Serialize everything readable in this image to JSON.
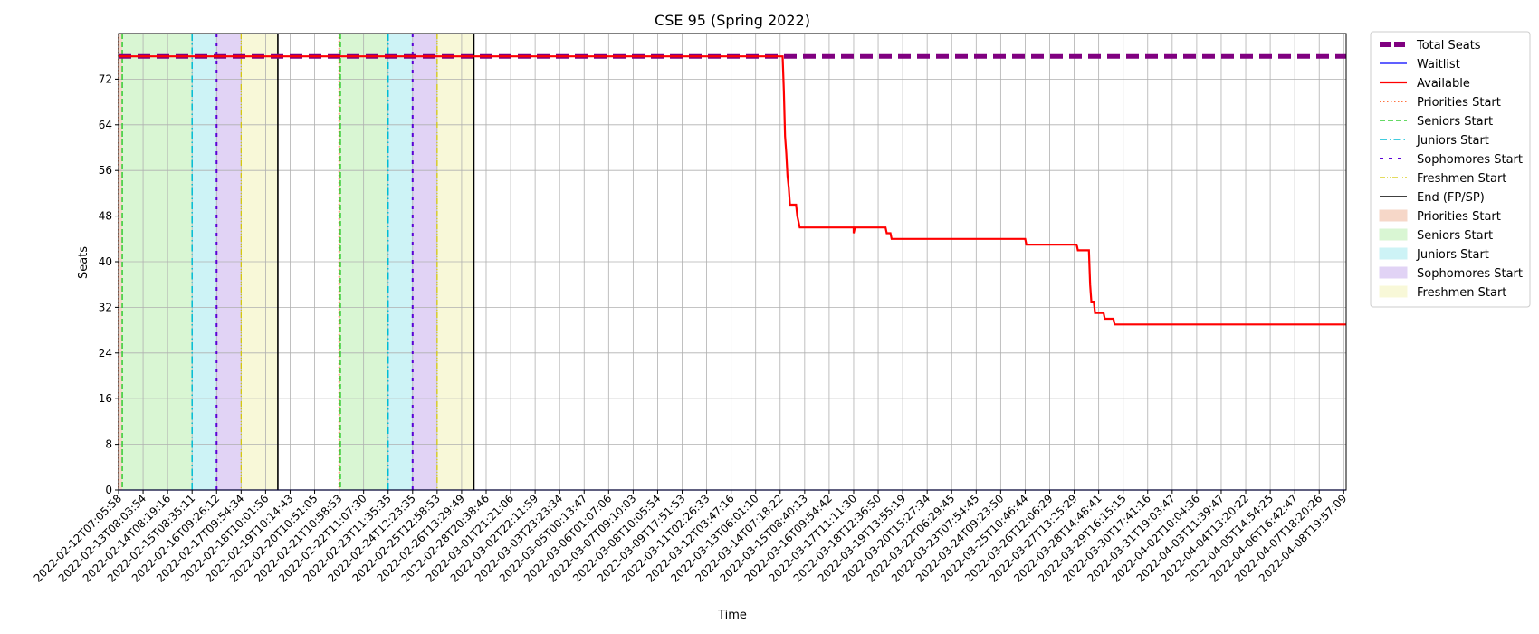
{
  "chart_data": {
    "type": "line",
    "title": "CSE 95 (Spring 2022)",
    "xlabel": "Time",
    "ylabel": "Seats",
    "ylim": [
      0,
      80
    ],
    "yticks": [
      0,
      8,
      16,
      24,
      32,
      40,
      48,
      56,
      64,
      72
    ],
    "xticks": [
      "2022-02-12T07:05:58",
      "2022-02-13T08:03:54",
      "2022-02-14T08:19:16",
      "2022-02-15T08:35:11",
      "2022-02-16T09:26:12",
      "2022-02-17T09:54:34",
      "2022-02-18T10:01:56",
      "2022-02-19T10:14:43",
      "2022-02-20T10:51:05",
      "2022-02-21T10:58:53",
      "2022-02-22T11:07:30",
      "2022-02-23T11:35:35",
      "2022-02-24T12:23:35",
      "2022-02-25T12:58:53",
      "2022-02-26T13:29:49",
      "2022-02-28T20:38:46",
      "2022-03-01T21:21:06",
      "2022-03-02T22:11:59",
      "2022-03-03T23:23:34",
      "2022-03-05T00:13:47",
      "2022-03-06T01:07:06",
      "2022-03-07T09:10:03",
      "2022-03-08T10:05:54",
      "2022-03-09T17:51:53",
      "2022-03-11T02:26:33",
      "2022-03-12T03:47:16",
      "2022-03-13T06:01:10",
      "2022-03-14T07:18:22",
      "2022-03-15T08:40:13",
      "2022-03-16T09:54:42",
      "2022-03-17T11:11:30",
      "2022-03-18T12:36:50",
      "2022-03-19T13:55:19",
      "2022-03-20T15:27:34",
      "2022-03-22T06:29:45",
      "2022-03-23T07:54:45",
      "2022-03-24T09:23:50",
      "2022-03-25T10:46:44",
      "2022-03-26T12:06:29",
      "2022-03-27T13:25:29",
      "2022-03-28T14:48:41",
      "2022-03-29T16:15:15",
      "2022-03-30T17:41:16",
      "2022-03-31T19:03:47",
      "2022-04-02T10:04:36",
      "2022-04-03T11:39:47",
      "2022-04-04T13:20:22",
      "2022-04-05T14:54:25",
      "2022-04-06T16:42:47",
      "2022-04-07T18:20:26",
      "2022-04-08T19:57:09"
    ],
    "x_end": 50.1,
    "grid": true,
    "legend_position": "outside-right",
    "series": [
      {
        "name": "Total Seats",
        "style": "dashed-thick",
        "color": "#800080",
        "points": [
          [
            0,
            76
          ],
          [
            50.1,
            76
          ]
        ]
      },
      {
        "name": "Waitlist",
        "style": "solid-thin",
        "color": "#0000ff",
        "points": [
          [
            0,
            0
          ],
          [
            50.1,
            0
          ]
        ]
      },
      {
        "name": "Available",
        "style": "solid",
        "color": "#ff0000",
        "points": [
          [
            0,
            76
          ],
          [
            27.1,
            76
          ],
          [
            27.15,
            70
          ],
          [
            27.2,
            62
          ],
          [
            27.25,
            59
          ],
          [
            27.3,
            55
          ],
          [
            27.35,
            53
          ],
          [
            27.4,
            50
          ],
          [
            27.65,
            50
          ],
          [
            27.7,
            48
          ],
          [
            27.75,
            47
          ],
          [
            27.8,
            46
          ],
          [
            30.0,
            46
          ],
          [
            30.0,
            45
          ],
          [
            30.05,
            46
          ],
          [
            31.3,
            46
          ],
          [
            31.35,
            45
          ],
          [
            31.5,
            45
          ],
          [
            31.55,
            44
          ],
          [
            37.0,
            44
          ],
          [
            37.05,
            43
          ],
          [
            39.1,
            43
          ],
          [
            39.15,
            42
          ],
          [
            39.6,
            42
          ],
          [
            39.65,
            36
          ],
          [
            39.7,
            33
          ],
          [
            39.8,
            33
          ],
          [
            39.85,
            31
          ],
          [
            40.2,
            31
          ],
          [
            40.25,
            30
          ],
          [
            40.6,
            30
          ],
          [
            40.65,
            29
          ],
          [
            50.1,
            29
          ]
        ]
      }
    ],
    "events": [
      {
        "round": 1,
        "priorities": 0.0,
        "seniors": 0.15,
        "juniors": 3.0,
        "sophomores": 4.0,
        "freshmen": 5.0,
        "end": 6.5
      },
      {
        "round": 2,
        "priorities": 9.0,
        "seniors": 9.05,
        "juniors": 11.0,
        "sophomores": 12.0,
        "freshmen": 13.0,
        "end": 14.5
      }
    ],
    "legend": [
      {
        "label": "Total Seats",
        "kind": "line",
        "key": "total"
      },
      {
        "label": "Waitlist",
        "kind": "line",
        "key": "waitlist"
      },
      {
        "label": "Available",
        "kind": "line",
        "key": "available"
      },
      {
        "label": "Priorities Start",
        "kind": "line",
        "key": "priorities"
      },
      {
        "label": "Seniors Start",
        "kind": "line",
        "key": "seniors"
      },
      {
        "label": "Juniors Start",
        "kind": "line",
        "key": "juniors"
      },
      {
        "label": "Sophomores Start",
        "kind": "line",
        "key": "sophomores"
      },
      {
        "label": "Freshmen Start",
        "kind": "line",
        "key": "freshmen"
      },
      {
        "label": "End (FP/SP)",
        "kind": "line",
        "key": "end"
      },
      {
        "label": "Priorities Start",
        "kind": "patch",
        "key": "priorities"
      },
      {
        "label": "Seniors Start",
        "kind": "patch",
        "key": "seniors"
      },
      {
        "label": "Juniors Start",
        "kind": "patch",
        "key": "juniors"
      },
      {
        "label": "Sophomores Start",
        "kind": "patch",
        "key": "sophomores"
      },
      {
        "label": "Freshmen Start",
        "kind": "patch",
        "key": "freshmen"
      }
    ],
    "colors": {
      "total": "#800080",
      "waitlist": "#0000ff",
      "available": "#ff0000",
      "priorities": "#ff4500",
      "seniors": "#32cd32",
      "juniors": "#00bcd4",
      "sophomores": "#5b00d6",
      "freshmen": "#d4c800",
      "end": "#000000",
      "priorities_fill": "#f6d7c8",
      "seniors_fill": "#d9f6d3",
      "juniors_fill": "#cdf3f6",
      "sophomores_fill": "#e1d3f5",
      "freshmen_fill": "#f8f8d8"
    }
  }
}
